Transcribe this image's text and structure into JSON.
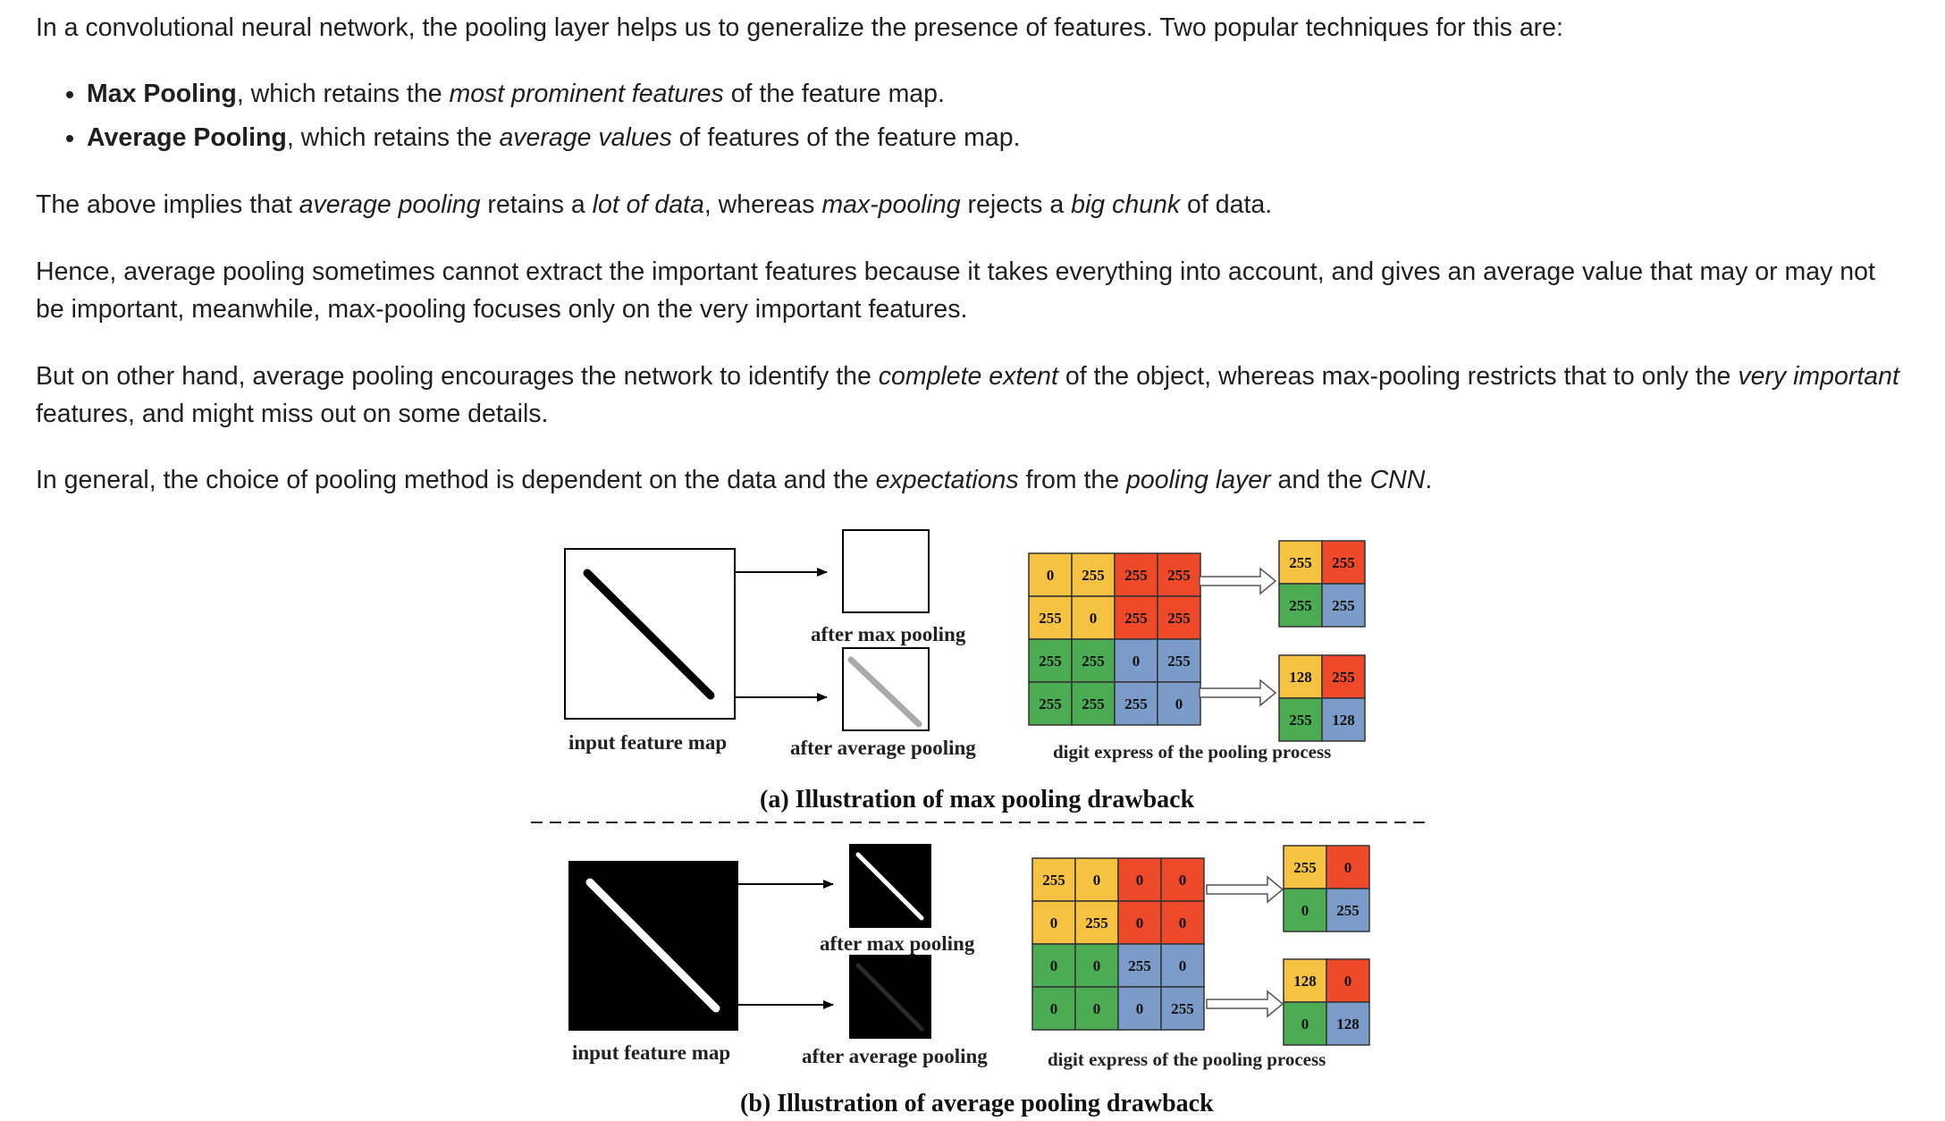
{
  "article": {
    "intro": "In a convolutional neural network, the pooling layer helps us to generalize the presence of features. Two popular techniques for this are:",
    "bullets": [
      {
        "term": "Max Pooling",
        "before": ", which retains the ",
        "em": "most prominent features",
        "after": " of the feature map."
      },
      {
        "term": "Average Pooling",
        "before": ", which retains the ",
        "em": "average values",
        "after": " of features of the feature map."
      }
    ],
    "p2": {
      "a": "The above implies that ",
      "b": "average pooling",
      "c": " retains a ",
      "d": "lot of data",
      "e": ", whereas ",
      "f": "max-pooling",
      "g": " rejects a ",
      "h": "big chunk",
      "i": " of data."
    },
    "p3": "Hence, average pooling sometimes cannot extract the important features because it takes everything into account, and gives an average value that may or may not be important, meanwhile, max-pooling focuses only on the very important features.",
    "p4": {
      "a": "But on other hand, average pooling encourages the network to identify the ",
      "b": "complete extent",
      "c": " of the object, whereas max-pooling restricts that to only the ",
      "d": "very important",
      "e": " features, and might miss out on some details."
    },
    "p5": {
      "a": "In general, the choice of pooling method is dependent on the data and the ",
      "b": "expectations",
      "c": " from the ",
      "d": "pooling layer",
      "e": " and the ",
      "f": "CNN",
      "g": "."
    }
  },
  "figure": {
    "colors": {
      "yellow": "#f5c242",
      "red": "#ee4a2a",
      "green": "#4cac54",
      "blue": "#7b9cc8",
      "black": "#000000"
    },
    "a": {
      "label_input": "input feature map",
      "label_max": "after max pooling",
      "label_avg": "after average pooling",
      "label_digits": "digit express of the pooling process",
      "caption": "(a) Illustration of max pooling drawback",
      "grid": [
        [
          "0",
          "255",
          "255",
          "255"
        ],
        [
          "255",
          "0",
          "255",
          "255"
        ],
        [
          "255",
          "255",
          "0",
          "255"
        ],
        [
          "255",
          "255",
          "255",
          "0"
        ]
      ],
      "max": [
        [
          "255",
          "255"
        ],
        [
          "255",
          "255"
        ]
      ],
      "avg": [
        [
          "128",
          "255"
        ],
        [
          "255",
          "128"
        ]
      ]
    },
    "b": {
      "label_input": "input feature map",
      "label_max": "after max pooling",
      "label_avg": "after average pooling",
      "label_digits": "digit express of the pooling process",
      "caption": "(b) Illustration of average pooling drawback",
      "grid": [
        [
          "255",
          "0",
          "0",
          "0"
        ],
        [
          "0",
          "255",
          "0",
          "0"
        ],
        [
          "0",
          "0",
          "255",
          "0"
        ],
        [
          "0",
          "0",
          "0",
          "255"
        ]
      ],
      "max": [
        [
          "255",
          "0"
        ],
        [
          "0",
          "255"
        ]
      ],
      "avg": [
        [
          "128",
          "0"
        ],
        [
          "0",
          "128"
        ]
      ]
    }
  }
}
